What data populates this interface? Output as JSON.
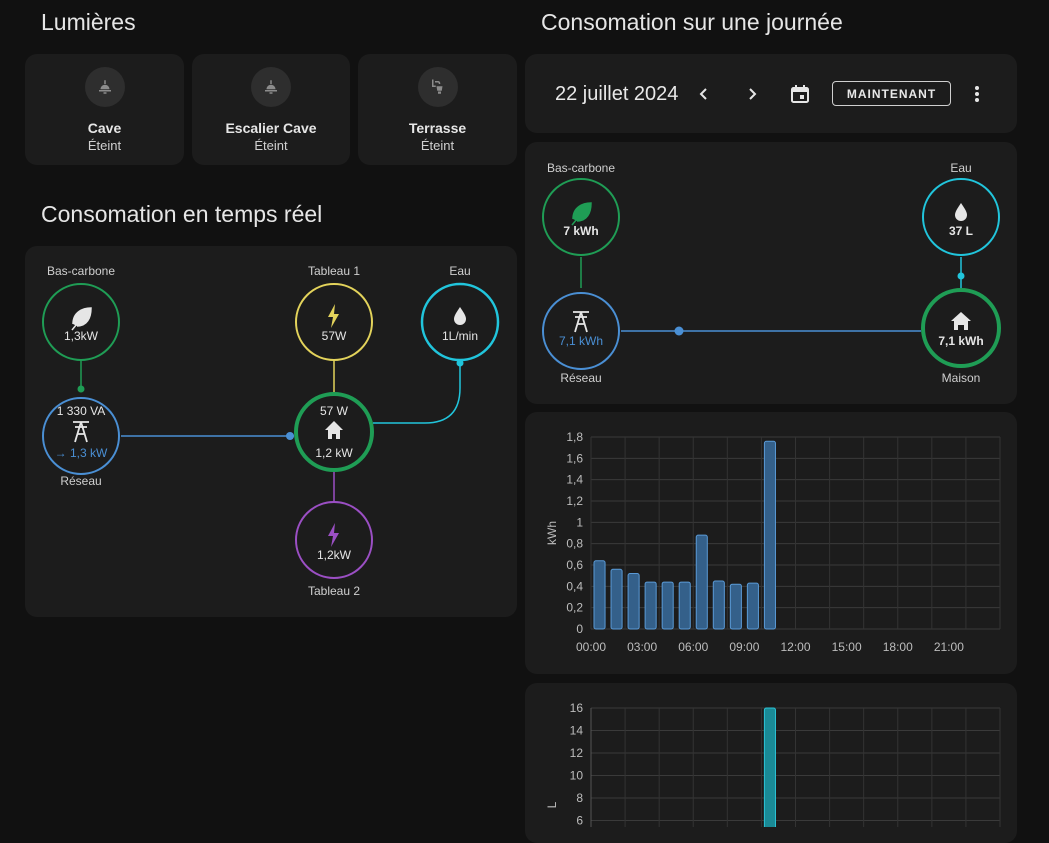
{
  "lights": {
    "title": "Lumières",
    "tiles": [
      {
        "name": "Cave",
        "state": "Éteint",
        "icon": "ceiling-light-icon"
      },
      {
        "name": "Escalier Cave",
        "state": "Éteint",
        "icon": "ceiling-light-icon"
      },
      {
        "name": "Terrasse",
        "state": "Éteint",
        "icon": "outdoor-lamp-icon"
      }
    ]
  },
  "realtime": {
    "title": "Consomation en temps réel",
    "low_carbon": {
      "label": "Bas-carbone",
      "value": "1,3kW"
    },
    "grid": {
      "label": "Réseau",
      "apparent": "1 330 VA",
      "value": "→ 1,3 kW"
    },
    "panel1": {
      "label": "Tableau 1",
      "value": "57W"
    },
    "water": {
      "label": "Eau",
      "value": "1L/min"
    },
    "home": {
      "top": "57 W",
      "value": "1,2 kW"
    },
    "panel2": {
      "label": "Tableau 2",
      "value": "1,2kW"
    }
  },
  "daily": {
    "title": "Consomation sur une journée",
    "date": "22 juillet 2024",
    "now_button": "MAINTENANT",
    "low_carbon": {
      "label": "Bas-carbone",
      "value": "7 kWh"
    },
    "water": {
      "label": "Eau",
      "value": "37 L"
    },
    "grid": {
      "label": "Réseau",
      "value": "7,1 kWh"
    },
    "home": {
      "label": "Maison",
      "value": "7,1 kWh"
    }
  },
  "colors": {
    "green": "#1f9d55",
    "blue": "#4a8fd4",
    "cyan": "#21c5dc",
    "yellow": "#e3d35b",
    "purple": "#9b4fc4",
    "bar_blue": "#3f7fb8",
    "bar_cyan": "#1aa0b0"
  },
  "chart_data": [
    {
      "type": "bar",
      "ylabel": "kWh",
      "ylim": [
        0,
        1.8
      ],
      "yticks": [
        "0",
        "0,2",
        "0,4",
        "0,6",
        "0,8",
        "1",
        "1,2",
        "1,4",
        "1,6",
        "1,8"
      ],
      "xticks": [
        "00:00",
        "03:00",
        "06:00",
        "09:00",
        "12:00",
        "15:00",
        "18:00",
        "21:00"
      ],
      "hours": [
        0,
        1,
        2,
        3,
        4,
        5,
        6,
        7,
        8,
        9,
        10
      ],
      "values": [
        0.64,
        0.56,
        0.52,
        0.44,
        0.44,
        0.44,
        0.88,
        0.45,
        0.42,
        0.43,
        1.76
      ]
    },
    {
      "type": "bar",
      "ylabel": "L",
      "ylim": [
        0,
        16
      ],
      "yticks": [
        "6",
        "8",
        "10",
        "12",
        "14",
        "16"
      ],
      "hours": [
        10
      ],
      "values": [
        16
      ]
    }
  ]
}
